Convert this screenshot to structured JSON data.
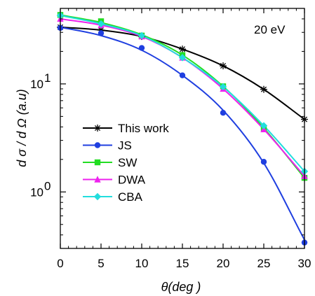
{
  "chart_data": {
    "type": "line",
    "title": "",
    "annotation": "20 eV",
    "xlabel": "θ(deg )",
    "ylabel": "d σ / d Ω (a.u)",
    "xlim": [
      0,
      30
    ],
    "ylim": [
      0.3,
      50
    ],
    "yscale": "log",
    "xticks": [
      0,
      5,
      10,
      15,
      20,
      25,
      30
    ],
    "xtick_labels": [
      "0",
      "5",
      "10",
      "15",
      "20",
      "25",
      "30"
    ],
    "yticks": [
      1,
      10
    ],
    "ytick_labels": [
      {
        "base": "10",
        "exp": "0"
      },
      {
        "base": "10",
        "exp": "1"
      }
    ],
    "grid": false,
    "legend_position": "center-left",
    "series": [
      {
        "name": "This work",
        "color": "#000000",
        "marker": "asterisk",
        "curve_x": [
          0,
          5,
          10,
          15,
          20,
          25,
          30
        ],
        "curve_y": [
          33.5,
          31.5,
          27.5,
          21.0,
          14.7,
          8.9,
          4.7
        ],
        "points_x": [
          0,
          5,
          10,
          15,
          20,
          25,
          30
        ],
        "points_y": [
          33.5,
          31.5,
          27.5,
          21.0,
          14.7,
          8.9,
          4.7
        ]
      },
      {
        "name": "JS",
        "color": "#1f3fe0",
        "marker": "circle",
        "curve_x": [
          0,
          5,
          10,
          15,
          20,
          25,
          30
        ],
        "curve_y": [
          33.5,
          28.0,
          20.5,
          12.0,
          5.7,
          1.85,
          0.36
        ],
        "points_x": [
          0,
          5,
          10,
          15,
          20,
          25,
          30
        ],
        "points_y": [
          33.0,
          29.5,
          21.5,
          12.0,
          5.4,
          1.9,
          0.34
        ]
      },
      {
        "name": "SW",
        "color": "#22dd22",
        "marker": "square",
        "curve_x": [
          0,
          5,
          10,
          15,
          20,
          25,
          30
        ],
        "curve_y": [
          43.5,
          37.0,
          28.5,
          18.5,
          9.5,
          3.9,
          1.35
        ],
        "points_x": [
          0,
          5,
          10,
          15,
          20,
          25,
          30
        ],
        "points_y": [
          43.5,
          38.0,
          28.0,
          18.5,
          9.5,
          3.9,
          1.35
        ]
      },
      {
        "name": "DWA",
        "color": "#ee22ee",
        "marker": "triangle",
        "curve_x": [
          0,
          5,
          10,
          15,
          20,
          25,
          30
        ],
        "curve_y": [
          40.0,
          35.0,
          27.5,
          17.5,
          9.0,
          3.8,
          1.4
        ],
        "points_x": [
          0,
          5,
          10,
          15,
          20,
          25,
          30
        ],
        "points_y": [
          40.0,
          35.0,
          27.5,
          17.5,
          9.0,
          3.8,
          1.4
        ]
      },
      {
        "name": "CBA",
        "color": "#22dddd",
        "marker": "diamond",
        "curve_x": [
          0,
          5,
          10,
          15,
          20,
          25,
          30
        ],
        "curve_y": [
          43.0,
          36.0,
          28.0,
          17.5,
          9.4,
          4.1,
          1.55
        ],
        "points_x": [
          0,
          5,
          10,
          15,
          20,
          25,
          30
        ],
        "points_y": [
          43.0,
          36.0,
          28.0,
          17.5,
          9.4,
          4.1,
          1.55
        ]
      }
    ]
  }
}
